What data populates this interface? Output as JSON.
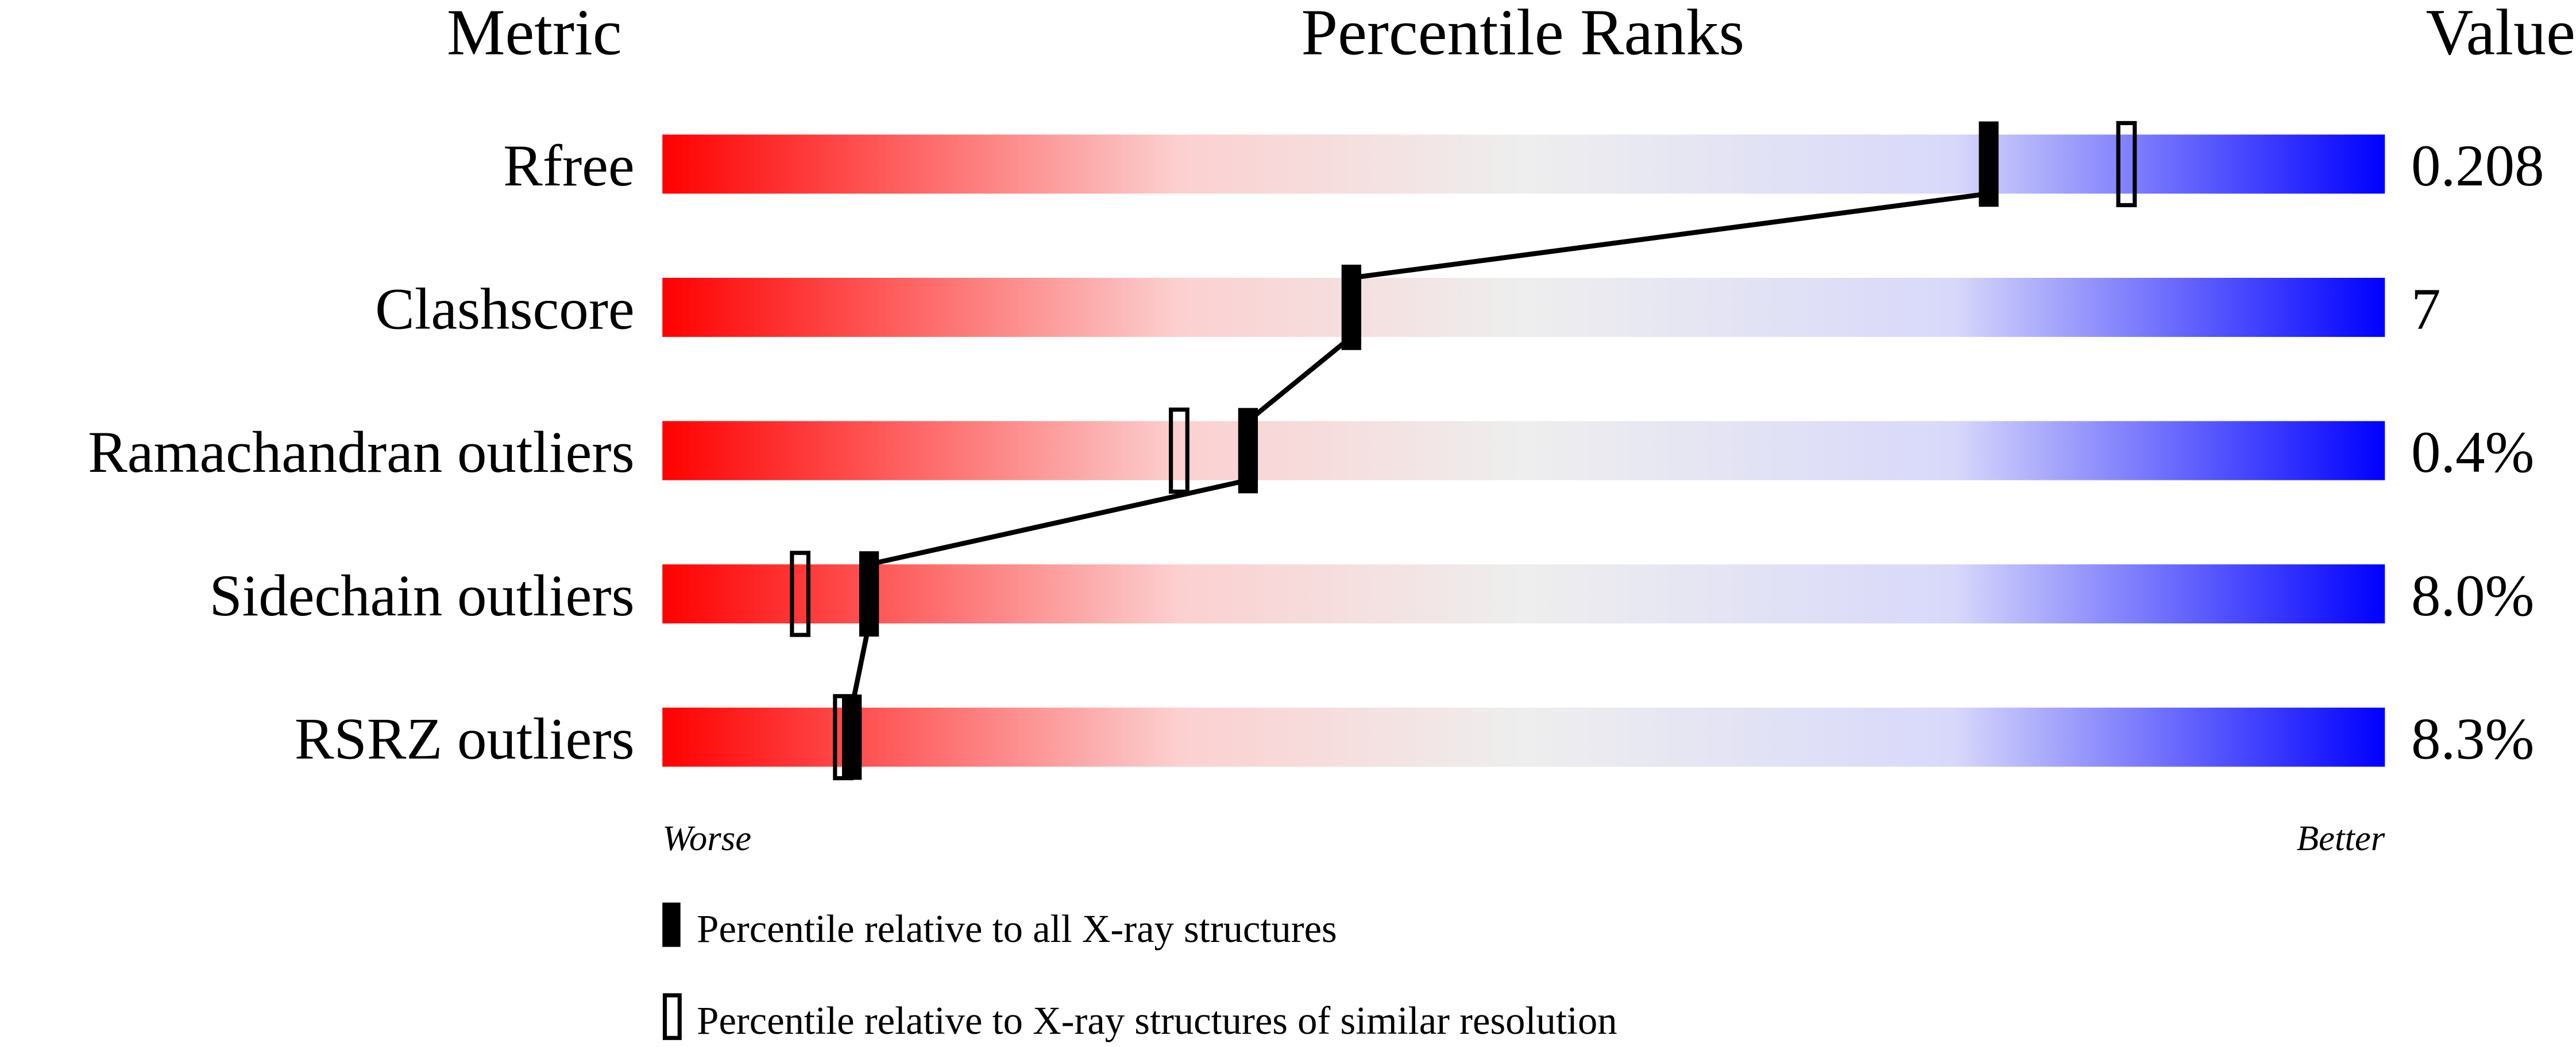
{
  "chart_data": {
    "type": "percentile-bar",
    "headers": {
      "metric": "Metric",
      "ranks": "Percentile Ranks",
      "value": "Value"
    },
    "xlim": [
      0,
      100
    ],
    "axis_labels": {
      "left": "Worse",
      "right": "Better"
    },
    "rows": [
      {
        "metric": "Rfree",
        "value": "0.208",
        "percentile_all": 77,
        "percentile_similar": 85
      },
      {
        "metric": "Clashscore",
        "value": "7",
        "percentile_all": 40,
        "percentile_similar": null
      },
      {
        "metric": "Ramachandran outliers",
        "value": "0.4%",
        "percentile_all": 34,
        "percentile_similar": 30
      },
      {
        "metric": "Sidechain outliers",
        "value": "8.0%",
        "percentile_all": 12,
        "percentile_similar": 8
      },
      {
        "metric": "RSRZ outliers",
        "value": "8.3%",
        "percentile_all": 11,
        "percentile_similar": 10.5
      }
    ],
    "legend": [
      {
        "marker": "filled",
        "label": "Percentile relative to all X-ray structures"
      },
      {
        "marker": "open",
        "label": "Percentile relative to X-ray structures of similar resolution"
      }
    ],
    "colors": {
      "worse": "#ff0000",
      "middle": "#eeeeee",
      "better": "#0000ff",
      "marker": "#000000"
    }
  }
}
